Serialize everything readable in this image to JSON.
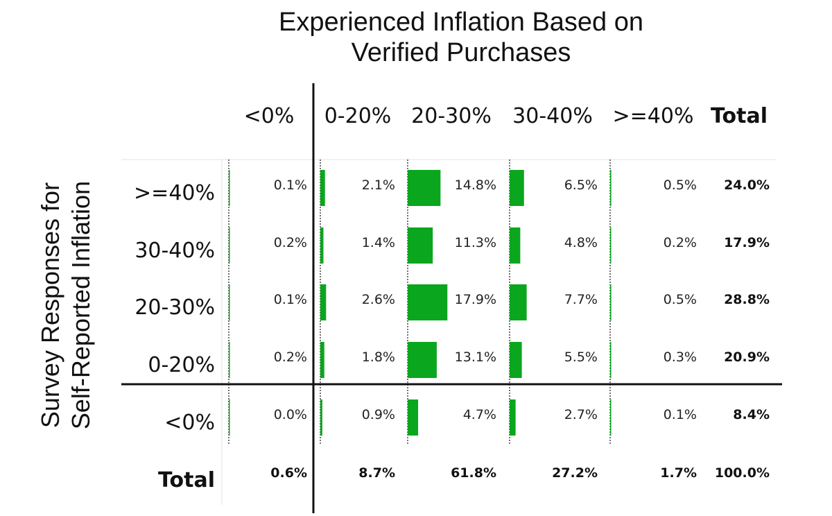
{
  "chart_data": {
    "type": "table",
    "title_lines": [
      "Experienced Inflation Based on",
      "Verified Purchases"
    ],
    "ylabel_lines": [
      "Survey Responses for",
      "Self-Reported Inflation"
    ],
    "columns": [
      "<0%",
      "0-20%",
      "20-30%",
      "30-40%",
      ">=40%"
    ],
    "total_label": "Total",
    "rows": [
      {
        "label": ">=40%",
        "values": [
          0.1,
          2.1,
          14.8,
          6.5,
          0.5
        ],
        "total": 24.0
      },
      {
        "label": "30-40%",
        "values": [
          0.2,
          1.4,
          11.3,
          4.8,
          0.2
        ],
        "total": 17.9
      },
      {
        "label": "20-30%",
        "values": [
          0.1,
          2.6,
          17.9,
          7.7,
          0.5
        ],
        "total": 28.8
      },
      {
        "label": "0-20%",
        "values": [
          0.2,
          1.8,
          13.1,
          5.5,
          0.3
        ],
        "total": 20.9
      },
      {
        "label": "<0%",
        "values": [
          0.0,
          0.9,
          4.7,
          2.7,
          0.1
        ],
        "total": 8.4
      }
    ],
    "column_totals": [
      0.6,
      8.7,
      61.8,
      27.2,
      1.7
    ],
    "grand_total": 100.0,
    "value_format": "percent-1-decimal",
    "bar_color": "#0aa61e"
  }
}
